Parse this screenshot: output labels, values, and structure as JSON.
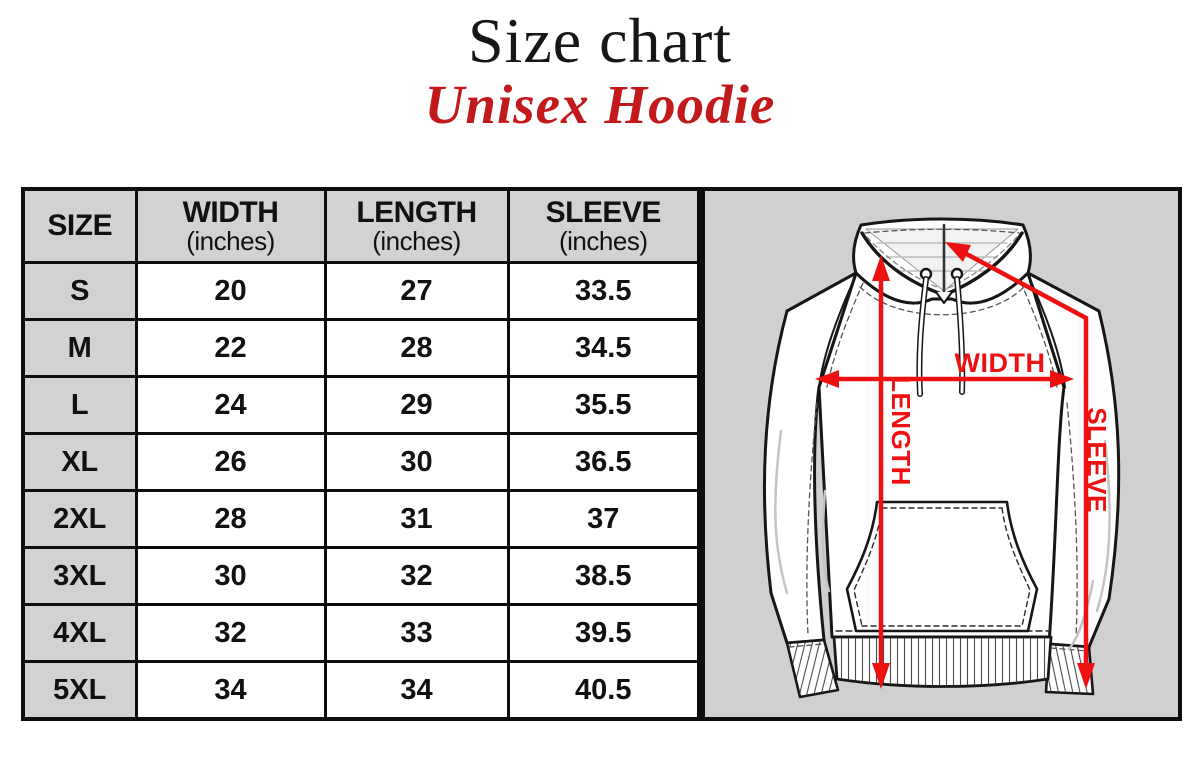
{
  "title": "Size chart",
  "subtitle": "Unisex Hoodie",
  "colors": {
    "accent_red": "#ee1111",
    "subtitle_red": "#c2191d",
    "panel_gray": "#d0d0d0",
    "header_gray": "#d2d2d2",
    "line_black": "#0d0d0d"
  },
  "table": {
    "headers": [
      {
        "label": "SIZE",
        "sub": ""
      },
      {
        "label": "WIDTH",
        "sub": "(inches)"
      },
      {
        "label": "LENGTH",
        "sub": "(inches)"
      },
      {
        "label": "SLEEVE",
        "sub": "(inches)"
      }
    ],
    "rows": [
      [
        "S",
        "20",
        "27",
        "33.5"
      ],
      [
        "M",
        "22",
        "28",
        "34.5"
      ],
      [
        "L",
        "24",
        "29",
        "35.5"
      ],
      [
        "XL",
        "26",
        "30",
        "36.5"
      ],
      [
        "2XL",
        "28",
        "31",
        "37"
      ],
      [
        "3XL",
        "30",
        "32",
        "38.5"
      ],
      [
        "4XL",
        "32",
        "33",
        "39.5"
      ],
      [
        "5XL",
        "34",
        "34",
        "40.5"
      ]
    ]
  },
  "diagram": {
    "width_label": "WIDTH",
    "length_label": "LENGTH",
    "sleeve_label": "SLEEVE"
  },
  "chart_data": {
    "type": "table",
    "title": "Size chart — Unisex Hoodie",
    "columns": [
      "SIZE",
      "WIDTH (inches)",
      "LENGTH (inches)",
      "SLEEVE (inches)"
    ],
    "rows": [
      {
        "size": "S",
        "width_in": 20,
        "length_in": 27,
        "sleeve_in": 33.5
      },
      {
        "size": "M",
        "width_in": 22,
        "length_in": 28,
        "sleeve_in": 34.5
      },
      {
        "size": "L",
        "width_in": 24,
        "length_in": 29,
        "sleeve_in": 35.5
      },
      {
        "size": "XL",
        "width_in": 26,
        "length_in": 30,
        "sleeve_in": 36.5
      },
      {
        "size": "2XL",
        "width_in": 28,
        "length_in": 31,
        "sleeve_in": 37
      },
      {
        "size": "3XL",
        "width_in": 30,
        "length_in": 32,
        "sleeve_in": 38.5
      },
      {
        "size": "4XL",
        "width_in": 32,
        "length_in": 33,
        "sleeve_in": 39.5
      },
      {
        "size": "5XL",
        "width_in": 34,
        "length_in": 34,
        "sleeve_in": 40.5
      }
    ]
  }
}
